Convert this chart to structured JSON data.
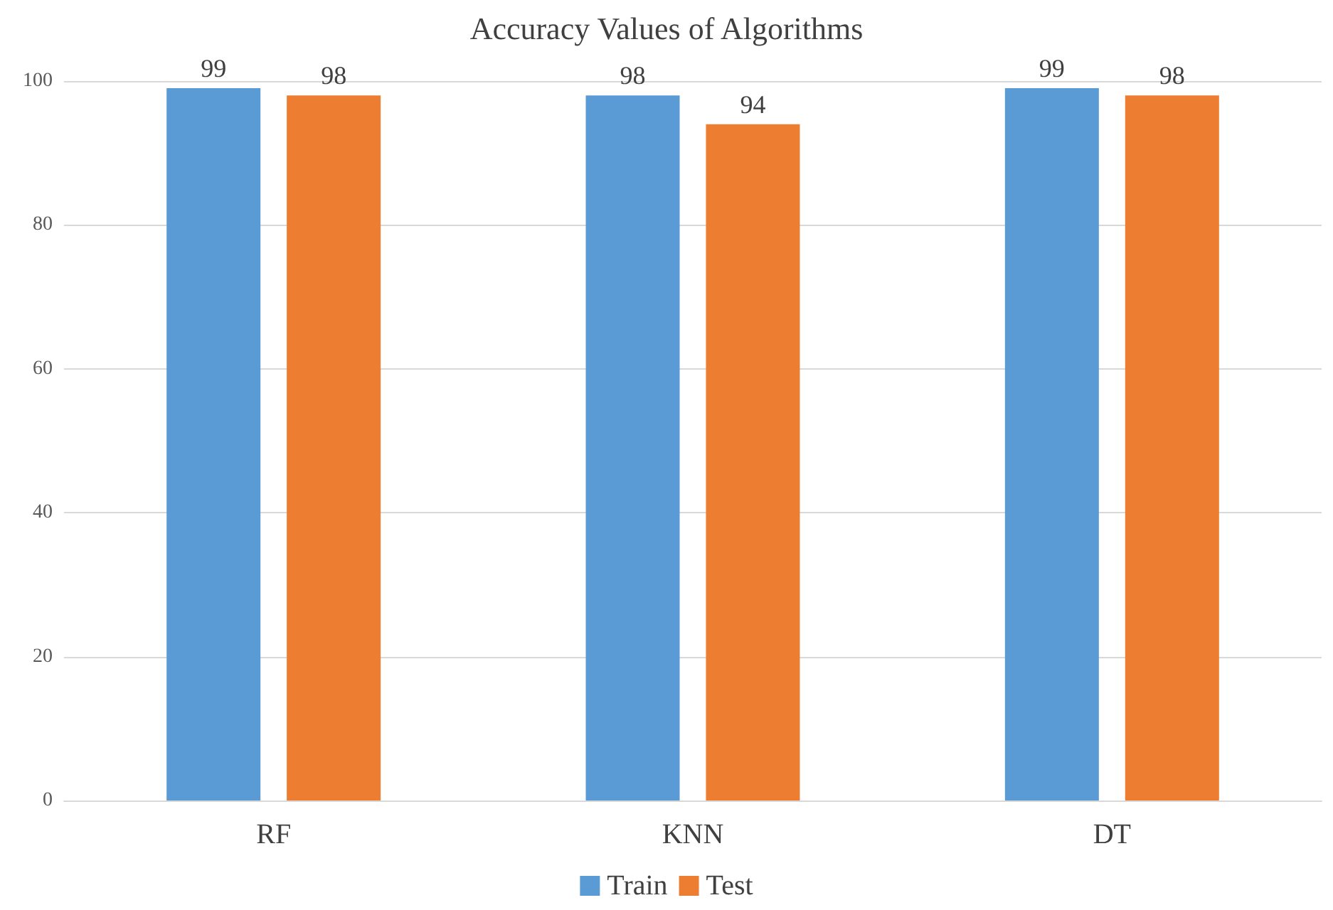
{
  "chart_data": {
    "type": "bar",
    "title": "Accuracy Values of Algorithms",
    "categories": [
      "RF",
      "KNN",
      "DT"
    ],
    "series": [
      {
        "name": "Train",
        "color": "#5b9bd5",
        "values": [
          99,
          98,
          99
        ]
      },
      {
        "name": "Test",
        "color": "#ed7d31",
        "values": [
          98,
          94,
          98
        ]
      }
    ],
    "ylim": [
      0,
      100
    ],
    "yticks": [
      0,
      20,
      40,
      60,
      80,
      100
    ],
    "grid": "y",
    "legend": "bottom",
    "data_labels": true
  }
}
